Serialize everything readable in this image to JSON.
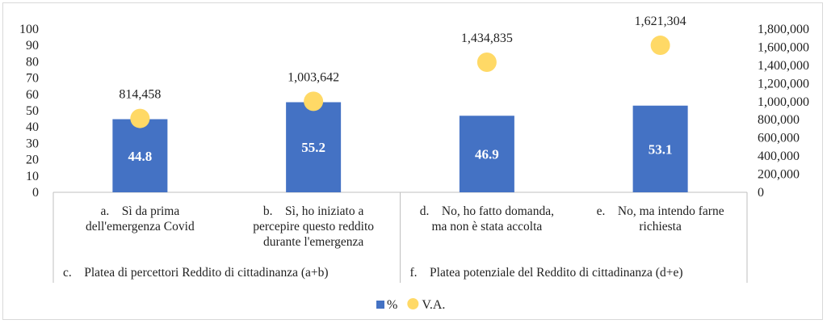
{
  "chart_data": {
    "type": "bar",
    "categories": [
      {
        "marker": "a.",
        "lines": [
          "Sì da prima",
          "dell'emergenza Covid"
        ]
      },
      {
        "marker": "b.",
        "lines": [
          "Sì, ho iniziato a",
          "percepire questo reddito",
          "durante l'emergenza"
        ]
      },
      {
        "marker": "d.",
        "lines": [
          "No, ho fatto domanda,",
          "ma non è stata accolta"
        ]
      },
      {
        "marker": "e.",
        "lines": [
          "No, ma intendo farne",
          "richiesta"
        ]
      }
    ],
    "groups": [
      {
        "marker": "c.",
        "label": "Platea di percettori Reddito di cittadinanza (a+b)"
      },
      {
        "marker": "f.",
        "label": "Platea potenziale del Reddito di cittadinanza (d+e)"
      }
    ],
    "series": [
      {
        "name": "%",
        "type": "bar",
        "axis": "left",
        "color": "#4472C4",
        "values": [
          44.8,
          55.2,
          46.9,
          53.1
        ],
        "labels": [
          "44.8",
          "55.2",
          "46.9",
          "53.1"
        ]
      },
      {
        "name": "V.A.",
        "type": "scatter",
        "axis": "right",
        "color": "#FFD966",
        "values": [
          814458,
          1003642,
          1434835,
          1621304
        ],
        "labels": [
          "814,458",
          "1,003,642",
          "1,434,835",
          "1,621,304"
        ]
      }
    ],
    "y_left": {
      "min": 0,
      "max": 100,
      "ticks": [
        "0",
        "10",
        "20",
        "30",
        "40",
        "50",
        "60",
        "70",
        "80",
        "90",
        "100"
      ]
    },
    "y_right": {
      "min": 0,
      "max": 1800000,
      "ticks": [
        "0",
        "200,000",
        "400,000",
        "600,000",
        "800,000",
        "1,000,000",
        "1,200,000",
        "1,400,000",
        "1,600,000",
        "1,800,000"
      ]
    },
    "legend": {
      "position": "bottom",
      "items": [
        "%",
        "V.A."
      ]
    },
    "grid": false
  }
}
